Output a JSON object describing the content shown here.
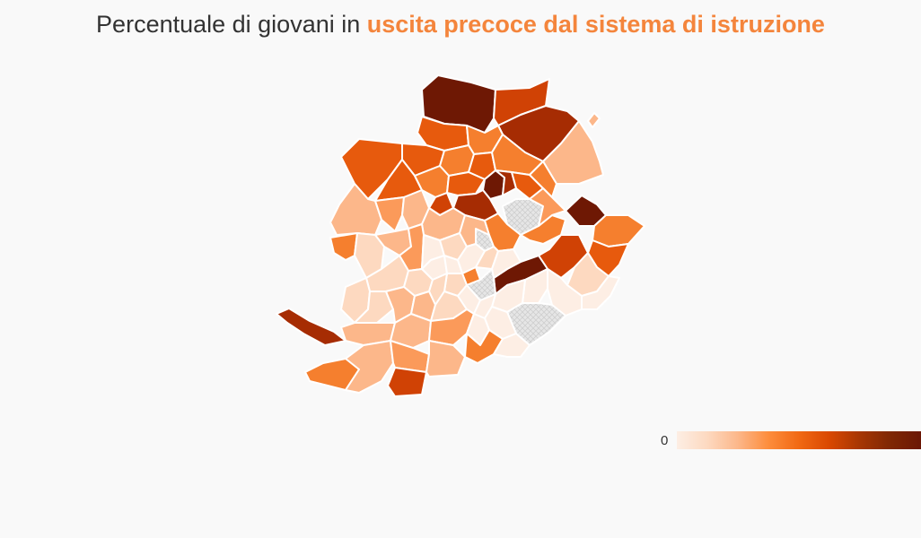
{
  "title": {
    "prefix": "Percentuale di giovani in",
    "highlight": "uscita precoce dal sistema di istruzione",
    "highlight_color": "#f4853c"
  },
  "legend": {
    "min_label": "0",
    "colors": [
      "#fdeee4",
      "#fdd9c0",
      "#fcb78a",
      "#fd8d3c",
      "#f16913",
      "#d94801",
      "#a63603",
      "#7f2704",
      "#6b1705"
    ]
  },
  "map": {
    "no_data_color": "#e2e2e2",
    "border_color": "#ffffff",
    "classes": {
      "c1": "#fdeee4",
      "c2": "#fdd9c0",
      "c3": "#fcb78a",
      "c4": "#fb9a5a",
      "c5": "#f57f2e",
      "c6": "#e75a0d",
      "c7": "#d04205",
      "c8": "#a62c03",
      "c9": "#6e1804"
    }
  }
}
